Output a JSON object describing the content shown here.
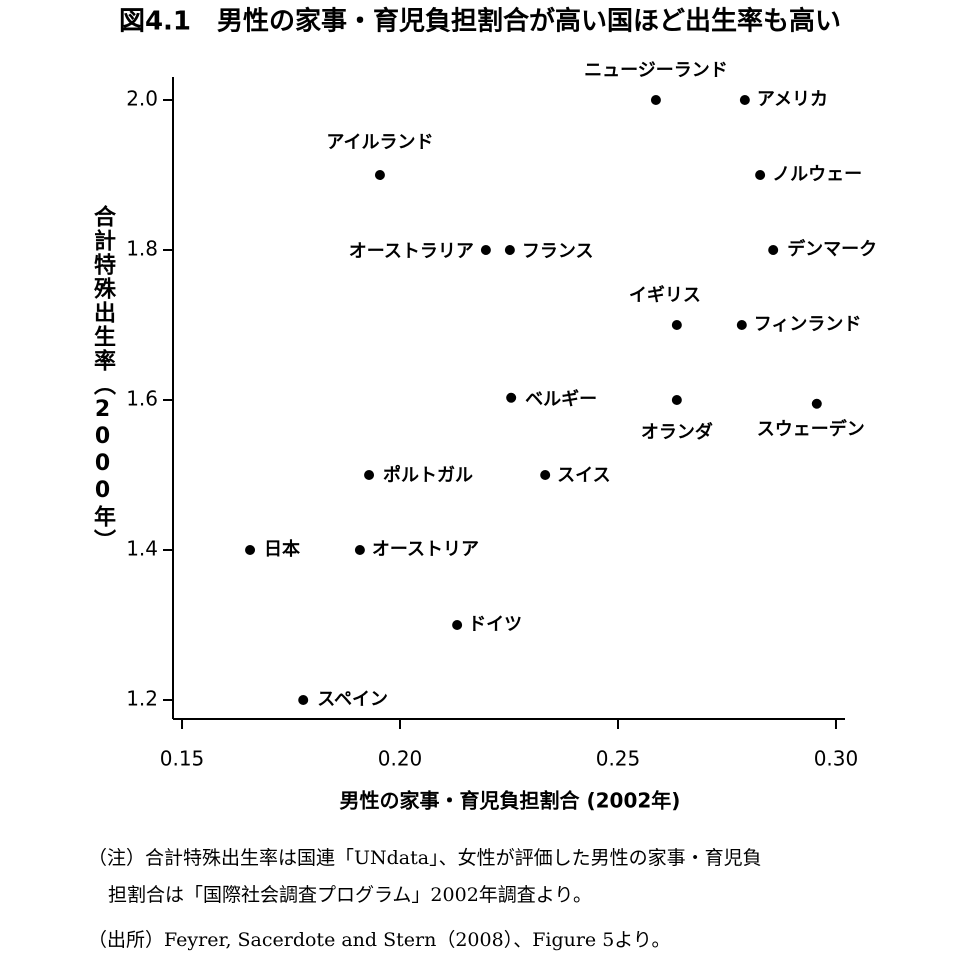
{
  "chart_data": {
    "type": "scatter",
    "title": "図4.1　男性の家事・育児負担割合が高い国ほど出生率も高い",
    "x_label": "男性の家事・育児負担割合 (2002年)",
    "y_label": "合計特殊出生率（2000年）",
    "labels": [
      "ニュージーランド",
      "アメリカ",
      "アイルランド",
      "ノルウェー",
      "オーストラリア",
      "フランス",
      "デンマーク",
      "イギリス",
      "フィンランド",
      "ベルギー",
      "オランダ",
      "スウェーデン",
      "ポルトガル",
      "スイス",
      "日本",
      "オーストリア",
      "ドイツ",
      "スペイン"
    ],
    "x": [
      0.2587,
      0.2791,
      0.1954,
      0.2826,
      0.2197,
      0.2252,
      0.2856,
      0.2635,
      0.2784,
      0.2255,
      0.2635,
      0.2956,
      0.1929,
      0.2333,
      0.1656,
      0.1908,
      0.2131,
      0.1778
    ],
    "values": [
      2.0,
      2.0,
      1.9,
      1.9,
      1.8,
      1.8,
      1.8,
      1.7,
      1.7,
      1.603,
      1.6,
      1.595,
      1.5,
      1.5,
      1.4,
      1.4,
      1.3,
      1.2
    ],
    "color": "#000000",
    "xlim": [
      0.148,
      0.302
    ],
    "ylim": [
      1.174,
      2.03
    ],
    "xticks": [
      {
        "value": 0.15,
        "label": "0.15"
      },
      {
        "value": 0.2,
        "label": "0.20"
      },
      {
        "value": 0.25,
        "label": "0.25"
      },
      {
        "value": 0.3,
        "label": "0.30"
      }
    ],
    "yticks": [
      {
        "value": 1.2,
        "label": "1.2"
      },
      {
        "value": 1.4,
        "label": "1.4"
      },
      {
        "value": 1.6,
        "label": "1.6"
      },
      {
        "value": 1.8,
        "label": "1.8"
      },
      {
        "value": 2.0,
        "label": "2.0"
      }
    ],
    "notes": [
      "（注）合計特殊出生率は国連「UNdata」、女性が評価した男性の家事・育児負",
      "担割合は「国際社会調査プログラム」2002年調査より。",
      "（出所）Feyrer, Sacerdote and Stern（2008）、Figure 5より。"
    ]
  }
}
